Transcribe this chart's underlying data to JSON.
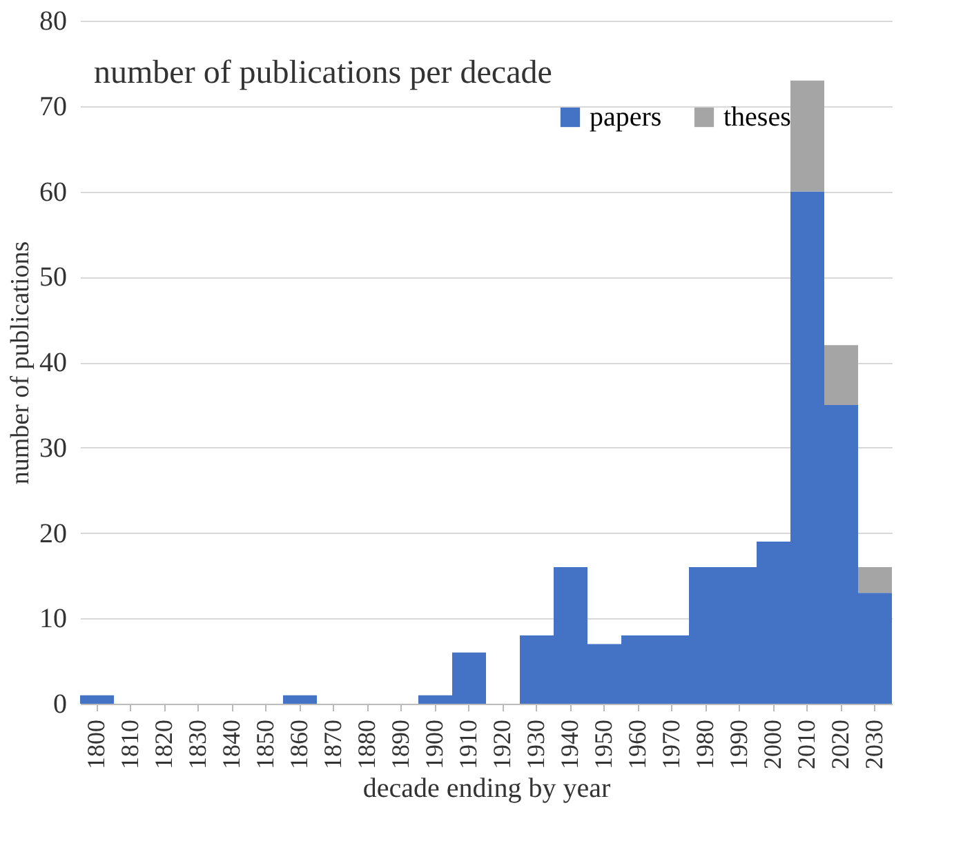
{
  "chart_data": {
    "type": "bar",
    "title": "number of publications  per decade",
    "xlabel": "decade ending by year",
    "ylabel": "number of publications",
    "categories": [
      "1800",
      "1810",
      "1820",
      "1830",
      "1840",
      "1850",
      "1860",
      "1870",
      "1880",
      "1890",
      "1900",
      "1910",
      "1920",
      "1930",
      "1940",
      "1950",
      "1960",
      "1970",
      "1980",
      "1990",
      "2000",
      "2010",
      "2020",
      "2030"
    ],
    "stacked": true,
    "series": [
      {
        "name": "papers",
        "color": "#4472c4",
        "values": [
          1,
          0,
          0,
          0,
          0,
          0,
          1,
          0,
          0,
          0,
          1,
          6,
          0,
          8,
          16,
          7,
          8,
          8,
          16,
          16,
          19,
          60,
          35,
          13
        ]
      },
      {
        "name": "theses",
        "color": "#a5a5a5",
        "values": [
          null,
          null,
          null,
          null,
          null,
          null,
          null,
          null,
          null,
          null,
          null,
          null,
          null,
          null,
          null,
          null,
          null,
          null,
          null,
          null,
          null,
          13,
          7,
          3
        ]
      }
    ],
    "ylim": [
      0,
      80
    ],
    "yticks": [
      0,
      10,
      20,
      30,
      40,
      50,
      60,
      70,
      80
    ],
    "grid": "y",
    "legend": "top right"
  }
}
